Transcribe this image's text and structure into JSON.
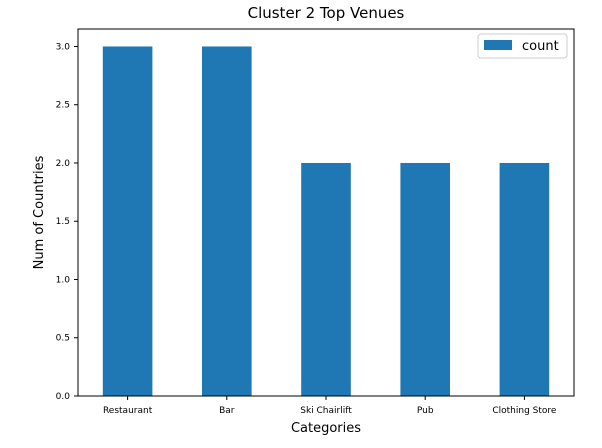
{
  "chart_data": {
    "type": "bar",
    "title": "Cluster 2 Top Venues",
    "xlabel": "Categories",
    "ylabel": "Num of Countries",
    "categories": [
      "Restaurant",
      "Bar",
      "Ski Chairlift",
      "Pub",
      "Clothing Store"
    ],
    "series": [
      {
        "name": "count",
        "values": [
          3.0,
          3.0,
          2.0,
          2.0,
          2.0
        ],
        "color": "#1f77b4"
      }
    ],
    "ylim": [
      0,
      3.15
    ],
    "yticks": [
      "0.0",
      "0.5",
      "1.0",
      "1.5",
      "2.0",
      "2.5",
      "3.0"
    ],
    "legend_position": "top-right",
    "grid": false
  }
}
